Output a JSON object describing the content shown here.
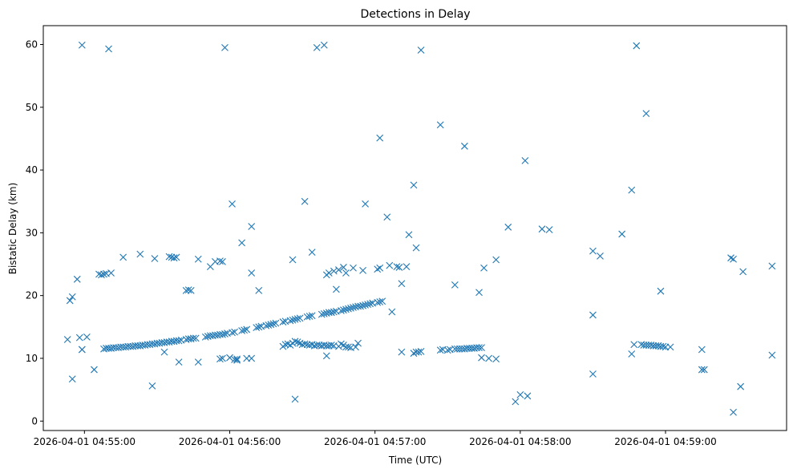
{
  "chart_data": {
    "type": "scatter",
    "title": "Detections in Delay",
    "xlabel": "Time (UTC)",
    "ylabel": "Bistatic Delay (km)",
    "x_unit": "time",
    "xlim": [
      "2026-04-01 04:54:43",
      "2026-04-01 04:59:50"
    ],
    "ylim": [
      -1.5,
      63
    ],
    "x_ticks": [
      "2026-04-01 04:55:00",
      "2026-04-01 04:56:00",
      "2026-04-01 04:57:00",
      "2026-04-01 04:58:00",
      "2026-04-01 04:59:00"
    ],
    "y_ticks": [
      0,
      10,
      20,
      30,
      40,
      50,
      60
    ],
    "marker": "x",
    "color": "#1f77b4",
    "grid": false,
    "series": [
      {
        "points": [
          [
            "04:54:53",
            13.0
          ],
          [
            "04:54:54",
            19.2
          ],
          [
            "04:54:55",
            6.7
          ],
          [
            "04:54:55",
            19.8
          ],
          [
            "04:54:57",
            22.6
          ],
          [
            "04:54:58",
            13.3
          ],
          [
            "04:54:59",
            59.9
          ],
          [
            "04:54:59",
            11.4
          ],
          [
            "04:54:59",
            11.4
          ],
          [
            "04:55:01",
            13.4
          ],
          [
            "04:55:04",
            8.2
          ],
          [
            "04:55:06",
            23.4
          ],
          [
            "04:55:07",
            23.3
          ],
          [
            "04:55:08",
            23.4
          ],
          [
            "04:55:09",
            23.5
          ],
          [
            "04:55:10",
            59.3
          ],
          [
            "04:55:11",
            23.6
          ],
          [
            "04:55:16",
            26.1
          ],
          [
            "04:55:23",
            26.6
          ],
          [
            "04:55:28",
            5.6
          ],
          [
            "04:55:29",
            25.9
          ],
          [
            "04:55:35",
            26.2
          ],
          [
            "04:55:36",
            26.1
          ],
          [
            "04:55:37",
            26.0
          ],
          [
            "04:55:38",
            26.1
          ],
          [
            "04:55:39",
            9.4
          ],
          [
            "04:55:42",
            20.8
          ],
          [
            "04:55:43",
            20.9
          ],
          [
            "04:55:44",
            20.8
          ],
          [
            "04:55:47",
            25.8
          ],
          [
            "04:55:47",
            9.4
          ],
          [
            "04:55:52",
            24.6
          ],
          [
            "04:55:54",
            25.4
          ],
          [
            "04:55:56",
            25.5
          ],
          [
            "04:55:57",
            25.4
          ],
          [
            "04:55:58",
            59.5
          ],
          [
            "04:56:01",
            34.6
          ],
          [
            "04:56:05",
            28.4
          ],
          [
            "04:56:09",
            31.0
          ],
          [
            "04:56:09",
            23.6
          ],
          [
            "04:56:12",
            20.8
          ],
          [
            "04:56:26",
            25.7
          ],
          [
            "04:56:31",
            35.0
          ],
          [
            "04:56:34",
            26.9
          ],
          [
            "04:56:36",
            59.5
          ],
          [
            "04:56:39",
            59.9
          ],
          [
            "04:56:40",
            23.3
          ],
          [
            "04:56:41",
            23.6
          ],
          [
            "04:56:43",
            23.9
          ],
          [
            "04:56:44",
            21.0
          ],
          [
            "04:56:45",
            24.1
          ],
          [
            "04:56:47",
            24.5
          ],
          [
            "04:56:48",
            23.6
          ],
          [
            "04:56:51",
            24.4
          ],
          [
            "04:56:55",
            24.0
          ],
          [
            "04:56:56",
            34.6
          ],
          [
            "04:57:01",
            24.2
          ],
          [
            "04:57:02",
            24.4
          ],
          [
            "04:57:02",
            45.1
          ],
          [
            "04:57:05",
            32.5
          ],
          [
            "04:57:06",
            24.8
          ],
          [
            "04:57:07",
            17.4
          ],
          [
            "04:57:09",
            24.6
          ],
          [
            "04:57:10",
            24.5
          ],
          [
            "04:57:11",
            21.9
          ],
          [
            "04:57:13",
            24.6
          ],
          [
            "04:57:14",
            29.7
          ],
          [
            "04:57:16",
            37.6
          ],
          [
            "04:57:17",
            27.6
          ],
          [
            "04:57:19",
            59.1
          ],
          [
            "04:57:27",
            47.2
          ],
          [
            "04:57:33",
            21.7
          ],
          [
            "04:57:37",
            43.8
          ],
          [
            "04:57:43",
            20.5
          ],
          [
            "04:57:45",
            24.4
          ],
          [
            "04:57:50",
            25.7
          ],
          [
            "04:57:55",
            30.9
          ],
          [
            "04:58:02",
            41.5
          ],
          [
            "04:58:09",
            30.6
          ],
          [
            "04:58:12",
            30.5
          ],
          [
            "04:58:30",
            27.1
          ],
          [
            "04:58:30",
            16.9
          ],
          [
            "04:58:33",
            26.3
          ],
          [
            "04:58:42",
            29.8
          ],
          [
            "04:58:46",
            36.8
          ],
          [
            "04:58:48",
            59.8
          ],
          [
            "04:58:52",
            49.0
          ],
          [
            "04:58:58",
            20.7
          ],
          [
            "04:59:27",
            26.0
          ],
          [
            "04:59:28",
            25.8
          ],
          [
            "04:59:32",
            23.8
          ],
          [
            "04:59:44",
            24.7
          ],
          [
            "04:55:08",
            11.5
          ],
          [
            "04:55:09",
            11.6
          ],
          [
            "04:55:10",
            11.6
          ],
          [
            "04:55:11",
            11.6
          ],
          [
            "04:55:12",
            11.7
          ],
          [
            "04:55:13",
            11.7
          ],
          [
            "04:55:14",
            11.7
          ],
          [
            "04:55:15",
            11.8
          ],
          [
            "04:55:16",
            11.8
          ],
          [
            "04:55:17",
            11.8
          ],
          [
            "04:55:18",
            11.9
          ],
          [
            "04:55:19",
            11.9
          ],
          [
            "04:55:20",
            11.9
          ],
          [
            "04:55:21",
            12.0
          ],
          [
            "04:55:22",
            12.0
          ],
          [
            "04:55:23",
            12.0
          ],
          [
            "04:55:24",
            12.1
          ],
          [
            "04:55:25",
            12.1
          ],
          [
            "04:55:26",
            12.2
          ],
          [
            "04:55:27",
            12.2
          ],
          [
            "04:55:28",
            12.3
          ],
          [
            "04:55:29",
            12.3
          ],
          [
            "04:55:30",
            12.4
          ],
          [
            "04:55:31",
            12.4
          ],
          [
            "04:55:32",
            12.5
          ],
          [
            "04:55:33",
            12.5
          ],
          [
            "04:55:34",
            12.6
          ],
          [
            "04:55:35",
            12.6
          ],
          [
            "04:55:36",
            12.7
          ],
          [
            "04:55:37",
            12.7
          ],
          [
            "04:55:38",
            12.8
          ],
          [
            "04:55:39",
            12.8
          ],
          [
            "04:55:40",
            12.9
          ],
          [
            "04:55:42",
            13.0
          ],
          [
            "04:55:43",
            13.1
          ],
          [
            "04:55:44",
            13.1
          ],
          [
            "04:55:45",
            13.2
          ],
          [
            "04:55:46",
            13.2
          ],
          [
            "04:55:50",
            13.4
          ],
          [
            "04:55:51",
            13.5
          ],
          [
            "04:55:52",
            13.6
          ],
          [
            "04:55:53",
            13.6
          ],
          [
            "04:55:54",
            13.7
          ],
          [
            "04:55:55",
            13.7
          ],
          [
            "04:55:56",
            13.8
          ],
          [
            "04:55:57",
            13.8
          ],
          [
            "04:55:58",
            13.9
          ],
          [
            "04:55:59",
            14.0
          ],
          [
            "04:56:01",
            14.1
          ],
          [
            "04:56:02",
            14.2
          ],
          [
            "04:56:05",
            14.4
          ],
          [
            "04:56:06",
            14.5
          ],
          [
            "04:56:07",
            14.6
          ],
          [
            "04:56:11",
            14.9
          ],
          [
            "04:56:12",
            15.0
          ],
          [
            "04:56:13",
            15.1
          ],
          [
            "04:56:15",
            15.2
          ],
          [
            "04:56:16",
            15.3
          ],
          [
            "04:56:17",
            15.4
          ],
          [
            "04:56:18",
            15.5
          ],
          [
            "04:56:19",
            15.6
          ],
          [
            "04:56:22",
            15.8
          ],
          [
            "04:56:23",
            15.9
          ],
          [
            "04:56:25",
            16.0
          ],
          [
            "04:56:26",
            16.1
          ],
          [
            "04:56:27",
            16.2
          ],
          [
            "04:56:28",
            16.3
          ],
          [
            "04:56:29",
            16.4
          ],
          [
            "04:56:32",
            16.6
          ],
          [
            "04:56:33",
            16.7
          ],
          [
            "04:56:34",
            16.8
          ],
          [
            "04:56:38",
            17.0
          ],
          [
            "04:56:39",
            17.1
          ],
          [
            "04:56:40",
            17.2
          ],
          [
            "04:56:41",
            17.3
          ],
          [
            "04:56:42",
            17.3
          ],
          [
            "04:56:43",
            17.4
          ],
          [
            "04:56:44",
            17.5
          ],
          [
            "04:56:46",
            17.6
          ],
          [
            "04:56:47",
            17.7
          ],
          [
            "04:56:48",
            17.8
          ],
          [
            "04:56:49",
            17.9
          ],
          [
            "04:56:50",
            18.0
          ],
          [
            "04:56:51",
            18.1
          ],
          [
            "04:56:52",
            18.2
          ],
          [
            "04:56:53",
            18.3
          ],
          [
            "04:56:54",
            18.3
          ],
          [
            "04:56:55",
            18.4
          ],
          [
            "04:56:56",
            18.5
          ],
          [
            "04:56:57",
            18.6
          ],
          [
            "04:56:58",
            18.7
          ],
          [
            "04:56:59",
            18.8
          ],
          [
            "04:57:01",
            18.9
          ],
          [
            "04:57:02",
            19.0
          ],
          [
            "04:57:03",
            19.1
          ],
          [
            "04:56:22",
            11.9
          ],
          [
            "04:56:23",
            12.2
          ],
          [
            "04:56:24",
            12.3
          ],
          [
            "04:56:25",
            12.1
          ],
          [
            "04:56:26",
            12.4
          ],
          [
            "04:56:27",
            12.7
          ],
          [
            "04:56:28",
            12.6
          ],
          [
            "04:56:29",
            12.4
          ],
          [
            "04:56:30",
            12.2
          ],
          [
            "04:56:31",
            12.3
          ],
          [
            "04:56:32",
            12.2
          ],
          [
            "04:56:33",
            12.1
          ],
          [
            "04:56:34",
            12.2
          ],
          [
            "04:56:35",
            12.0
          ],
          [
            "04:56:36",
            12.1
          ],
          [
            "04:56:37",
            12.1
          ],
          [
            "04:56:38",
            12.0
          ],
          [
            "04:56:39",
            12.1
          ],
          [
            "04:56:40",
            12.0
          ],
          [
            "04:56:41",
            12.0
          ],
          [
            "04:56:42",
            12.1
          ],
          [
            "04:56:43",
            12.0
          ],
          [
            "04:56:45",
            11.9
          ],
          [
            "04:56:46",
            12.3
          ],
          [
            "04:56:47",
            12.1
          ],
          [
            "04:56:48",
            11.8
          ],
          [
            "04:56:49",
            11.8
          ],
          [
            "04:56:50",
            11.7
          ],
          [
            "04:56:52",
            11.8
          ],
          [
            "04:56:53",
            12.4
          ],
          [
            "04:56:40",
            10.4
          ],
          [
            "04:55:33",
            11.0
          ],
          [
            "04:55:56",
            9.9
          ],
          [
            "04:55:57",
            10.0
          ],
          [
            "04:56:00",
            10.1
          ],
          [
            "04:56:02",
            9.8
          ],
          [
            "04:56:03",
            9.7
          ],
          [
            "04:56:03",
            9.9
          ],
          [
            "04:56:07",
            10.0
          ],
          [
            "04:56:09",
            10.0
          ],
          [
            "04:56:27",
            3.5
          ],
          [
            "04:57:11",
            11.0
          ],
          [
            "04:57:16",
            10.8
          ],
          [
            "04:57:17",
            11.0
          ],
          [
            "04:57:18",
            11.0
          ],
          [
            "04:57:19",
            11.1
          ],
          [
            "04:57:27",
            11.3
          ],
          [
            "04:57:28",
            11.4
          ],
          [
            "04:57:30",
            11.3
          ],
          [
            "04:57:31",
            11.4
          ],
          [
            "04:57:33",
            11.5
          ],
          [
            "04:57:34",
            11.5
          ],
          [
            "04:57:35",
            11.5
          ],
          [
            "04:57:36",
            11.5
          ],
          [
            "04:57:37",
            11.5
          ],
          [
            "04:57:38",
            11.6
          ],
          [
            "04:57:39",
            11.6
          ],
          [
            "04:57:40",
            11.6
          ],
          [
            "04:57:41",
            11.6
          ],
          [
            "04:57:42",
            11.7
          ],
          [
            "04:57:43",
            11.7
          ],
          [
            "04:57:44",
            11.7
          ],
          [
            "04:57:44",
            10.1
          ],
          [
            "04:57:47",
            10.0
          ],
          [
            "04:57:50",
            9.9
          ],
          [
            "04:57:58",
            3.1
          ],
          [
            "04:58:00",
            4.2
          ],
          [
            "04:58:03",
            4.0
          ],
          [
            "04:58:30",
            7.5
          ],
          [
            "04:58:46",
            10.7
          ],
          [
            "04:58:47",
            12.2
          ],
          [
            "04:58:50",
            12.2
          ],
          [
            "04:58:51",
            12.1
          ],
          [
            "04:58:52",
            12.1
          ],
          [
            "04:58:53",
            12.1
          ],
          [
            "04:58:54",
            12.1
          ],
          [
            "04:58:55",
            12.0
          ],
          [
            "04:58:56",
            12.0
          ],
          [
            "04:58:57",
            12.0
          ],
          [
            "04:58:58",
            11.9
          ],
          [
            "04:58:59",
            11.9
          ],
          [
            "04:59:00",
            11.8
          ],
          [
            "04:59:02",
            11.8
          ],
          [
            "04:59:15",
            11.4
          ],
          [
            "04:59:15",
            8.2
          ],
          [
            "04:59:16",
            8.2
          ],
          [
            "04:59:28",
            1.4
          ],
          [
            "04:59:31",
            5.5
          ],
          [
            "04:59:44",
            10.5
          ]
        ]
      }
    ]
  }
}
